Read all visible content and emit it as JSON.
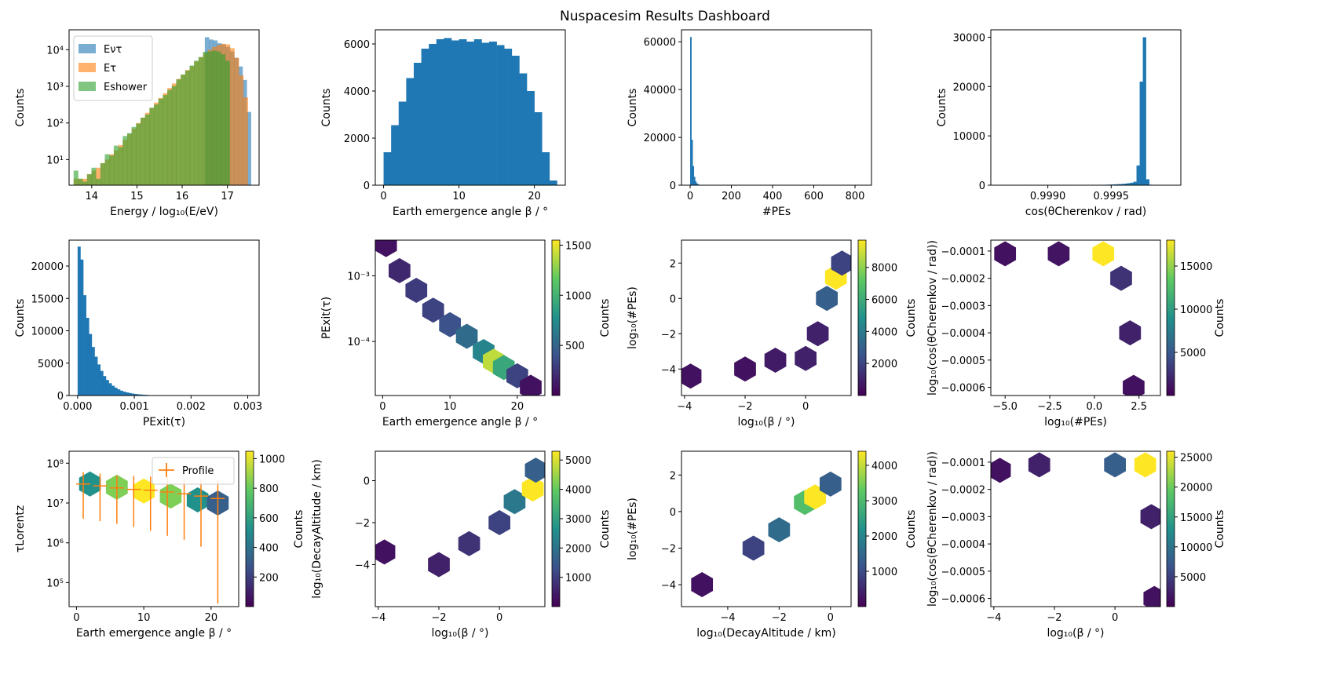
{
  "title": "Nuspacesim Results Dashboard",
  "chart_data": [
    {
      "id": "energy",
      "type": "histogram",
      "yscale": "log",
      "xlabel": "Energy / log₁₀(E/eV)",
      "ylabel": "Counts",
      "xlim": [
        13.5,
        17.7
      ],
      "ylim": [
        2,
        35000
      ],
      "xticks": [
        "14",
        "15",
        "16",
        "17"
      ],
      "xtick_values": [
        14,
        15,
        16,
        17
      ],
      "yticks": [
        "10¹",
        "10²",
        "10³",
        "10⁴"
      ],
      "ytick_values": [
        10,
        100,
        1000,
        10000
      ],
      "legend": {
        "entries": [
          "Eντ",
          "Eτ",
          "Eshower"
        ],
        "loc": "upper left"
      },
      "series": [
        {
          "name": "Eντ",
          "color": "#1f77b4",
          "bins": [
            16.5,
            17.52
          ],
          "values": [
            22000,
            19000,
            18000,
            15000,
            14000,
            12000,
            9000,
            6000,
            3500,
            1500,
            200
          ]
        },
        {
          "name": "Eτ",
          "color": "#ff7f0e",
          "bins": [
            13.6,
            17.45
          ],
          "values": [
            3,
            3,
            3,
            4,
            5,
            6,
            8,
            10,
            14,
            18,
            25,
            35,
            50,
            70,
            100,
            140,
            190,
            260,
            360,
            480,
            650,
            900,
            1200,
            1600,
            2100,
            2800,
            3600,
            4800,
            6300,
            8000,
            10000,
            12000,
            13500,
            14500,
            14000,
            11000,
            6000,
            2000,
            500
          ]
        },
        {
          "name": "Eshower",
          "color": "#2ca02c",
          "bins": [
            13.6,
            17.05
          ],
          "values": [
            5,
            3,
            2.5,
            4,
            6,
            3,
            8,
            14,
            13,
            24,
            22,
            44,
            53,
            78,
            96,
            140,
            170,
            260,
            320,
            460,
            580,
            800,
            1030,
            1550,
            2100,
            2700,
            3700,
            5000,
            6300,
            8800,
            9000,
            9500,
            9000,
            7500,
            5000
          ]
        }
      ]
    },
    {
      "id": "beta",
      "type": "histogram",
      "yscale": "linear",
      "xlabel": "Earth emergence angle β / °",
      "ylabel": "Counts",
      "xlim": [
        -1.1,
        24.1
      ],
      "ylim": [
        0,
        6600
      ],
      "xticks": [
        "0",
        "10",
        "20"
      ],
      "xtick_values": [
        0,
        10,
        20
      ],
      "yticks": [
        "0",
        "2000",
        "4000",
        "6000"
      ],
      "ytick_values": [
        0,
        2000,
        4000,
        6000
      ],
      "series": [
        {
          "name": "β",
          "color": "#1f77b4",
          "bins": [
            0,
            23
          ],
          "values": [
            1400,
            2550,
            3550,
            4550,
            5200,
            5800,
            6000,
            6200,
            6250,
            6150,
            6200,
            6100,
            6200,
            6050,
            6100,
            5950,
            5800,
            5500,
            4750,
            4000,
            3100,
            1400,
            200
          ]
        }
      ]
    },
    {
      "id": "npe",
      "type": "histogram",
      "yscale": "linear",
      "xlabel": "#PEs",
      "ylabel": "Counts",
      "xlim": [
        -42,
        880
      ],
      "ylim": [
        0,
        65000
      ],
      "xticks": [
        "0",
        "200",
        "400",
        "600",
        "800"
      ],
      "xtick_values": [
        0,
        200,
        400,
        600,
        800
      ],
      "yticks": [
        "0",
        "20000",
        "40000",
        "60000"
      ],
      "ytick_values": [
        0,
        20000,
        40000,
        60000
      ],
      "series": [
        {
          "name": "#PEs",
          "color": "#1f77b4",
          "bins": [
            0,
            42
          ],
          "values": [
            62000,
            19000,
            8000,
            3500,
            1600,
            800,
            400
          ]
        }
      ]
    },
    {
      "id": "cosc",
      "type": "histogram",
      "yscale": "linear",
      "xlabel": "cos(θCherenkov / rad)",
      "ylabel": "Counts",
      "xlim": [
        0.99855,
        1.00005
      ],
      "ylim": [
        0,
        31500
      ],
      "xticks": [
        "0.9990",
        "0.9995"
      ],
      "xtick_values": [
        0.999,
        0.9995
      ],
      "yticks": [
        "0",
        "10000",
        "20000",
        "30000"
      ],
      "ytick_values": [
        0,
        10000,
        20000,
        30000
      ],
      "series": [
        {
          "name": "cos θ",
          "color": "#1f77b4",
          "bins": [
            0.99945,
            0.99985
          ],
          "values": [
            100,
            120,
            150,
            180,
            220,
            260,
            320,
            400,
            500,
            700,
            4000,
            21000,
            30000,
            1200,
            100,
            20
          ]
        }
      ]
    },
    {
      "id": "pexit",
      "type": "histogram",
      "yscale": "linear",
      "xlabel": "PExit(τ)",
      "ylabel": "Counts",
      "xlim": [
        -0.00015,
        0.0032
      ],
      "ylim": [
        0,
        24000
      ],
      "xticks": [
        "0.000",
        "0.001",
        "0.002",
        "0.003"
      ],
      "xtick_values": [
        0,
        0.001,
        0.002,
        0.003
      ],
      "yticks": [
        "0",
        "5000",
        "10000",
        "15000",
        "20000"
      ],
      "ytick_values": [
        0,
        5000,
        10000,
        15000,
        20000
      ],
      "series": [
        {
          "name": "PExit",
          "color": "#1f77b4",
          "bins": [
            0,
            0.00125
          ],
          "values": [
            23000,
            21000,
            15500,
            12000,
            9500,
            7500,
            6000,
            4800,
            3800,
            3000,
            2400,
            1900,
            1500,
            1200,
            950,
            750,
            600,
            480,
            380,
            300,
            240,
            190,
            150,
            120,
            95
          ]
        }
      ]
    },
    {
      "id": "beta_pexit",
      "type": "hexbin",
      "yscale": "log",
      "xlabel": "Earth emergence angle β / °",
      "ylabel": "PExit(τ)",
      "xlim": [
        -1.1,
        24.1
      ],
      "ylim": [
        1.5e-05,
        0.0035
      ],
      "xticks": [
        "0",
        "10",
        "20"
      ],
      "xtick_values": [
        0,
        10,
        20
      ],
      "yticks": [
        "10⁻³",
        "10⁻⁴"
      ],
      "ytick_values": [
        0.001,
        0.0001
      ],
      "colorbar": {
        "label": "Counts",
        "ticks": [
          "500",
          "1000",
          "1500"
        ],
        "tick_values": [
          500,
          1000,
          1500
        ],
        "max": 1550
      },
      "points": [
        [
          0.5,
          0.003,
          0.05
        ],
        [
          2.5,
          0.0012,
          0.12
        ],
        [
          5,
          0.0006,
          0.18
        ],
        [
          7.5,
          0.0003,
          0.2
        ],
        [
          10,
          0.00018,
          0.25
        ],
        [
          12.5,
          0.00012,
          0.35
        ],
        [
          15,
          7e-05,
          0.45
        ],
        [
          16.5,
          5e-05,
          0.9
        ],
        [
          18,
          4e-05,
          0.6
        ],
        [
          20,
          3e-05,
          0.2
        ],
        [
          22,
          2e-05,
          0.05
        ]
      ]
    },
    {
      "id": "beta_npe",
      "type": "hexbin",
      "yscale": "linear",
      "xlabel": "log₁₀(β / °)",
      "ylabel": "log₁₀(#PEs)",
      "xlim": [
        -4.1,
        1.5
      ],
      "ylim": [
        -5.5,
        3.3
      ],
      "xticks": [
        "−4",
        "−2",
        "0"
      ],
      "xtick_values": [
        -4,
        -2,
        0
      ],
      "yticks": [
        "2",
        "0",
        "−2",
        "−4"
      ],
      "ytick_values": [
        2,
        0,
        -2,
        -4
      ],
      "colorbar": {
        "label": "Counts",
        "ticks": [
          "2000",
          "4000",
          "6000",
          "8000"
        ],
        "tick_values": [
          2000,
          4000,
          6000,
          8000
        ],
        "max": 9700
      },
      "points": [
        [
          -3.8,
          -4.4,
          0.05
        ],
        [
          -2,
          -4,
          0.05
        ],
        [
          -1,
          -3.5,
          0.08
        ],
        [
          0,
          -3.4,
          0.1
        ],
        [
          0.4,
          -2,
          0.1
        ],
        [
          0.7,
          0,
          0.3
        ],
        [
          1,
          1.2,
          1.0
        ],
        [
          1.2,
          2,
          0.2
        ]
      ]
    },
    {
      "id": "npe_cosc",
      "type": "hexbin",
      "yscale": "linear",
      "xlabel": "log₁₀(#PEs)",
      "ylabel": "log₁₀(cos(θCherenkov / rad))",
      "xlim": [
        -5.8,
        3.7
      ],
      "ylim": [
        -0.00063,
        -6e-05
      ],
      "xticks": [
        "−5.0",
        "−2.5",
        "0.0",
        "2.5"
      ],
      "xtick_values": [
        -5,
        -2.5,
        0,
        2.5
      ],
      "yticks": [
        "−0.0001",
        "−0.0002",
        "−0.0003",
        "−0.0004",
        "−0.0005",
        "−0.0006"
      ],
      "ytick_values": [
        -0.0001,
        -0.0002,
        -0.0003,
        -0.0004,
        -0.0005,
        -0.0006
      ],
      "colorbar": {
        "label": "Counts",
        "ticks": [
          "5000",
          "10000",
          "15000"
        ],
        "tick_values": [
          5000,
          10000,
          15000
        ],
        "max": 18000
      },
      "points": [
        [
          -5,
          -0.00011,
          0.05
        ],
        [
          -2,
          -0.00011,
          0.06
        ],
        [
          0.5,
          -0.00011,
          1.0
        ],
        [
          1.5,
          -0.0002,
          0.15
        ],
        [
          2,
          -0.0004,
          0.1
        ],
        [
          2.2,
          -0.0006,
          0.05
        ]
      ]
    },
    {
      "id": "beta_lorentz",
      "type": "hexbin",
      "yscale": "log",
      "xlabel": "Earth emergence angle β / °",
      "ylabel": "τLorentz",
      "xlim": [
        -1.1,
        24.1
      ],
      "ylim": [
        25000,
        200000000
      ],
      "xticks": [
        "0",
        "10",
        "20"
      ],
      "xtick_values": [
        0,
        10,
        20
      ],
      "yticks": [
        "10⁸",
        "10⁷",
        "10⁶",
        "10⁵"
      ],
      "ytick_values": [
        100000000,
        10000000,
        1000000,
        100000
      ],
      "legend": {
        "entries": [
          "Profile"
        ],
        "loc": "upper right"
      },
      "colorbar": {
        "label": "Counts",
        "ticks": [
          "200",
          "400",
          "600",
          "800",
          "1000"
        ],
        "tick_values": [
          200,
          400,
          600,
          800,
          1000
        ],
        "max": 1050
      },
      "points": [
        [
          2,
          30000000,
          0.5
        ],
        [
          6,
          25000000,
          0.8
        ],
        [
          10,
          20000000,
          1.0
        ],
        [
          14,
          15000000,
          0.8
        ],
        [
          18,
          12000000,
          0.5
        ],
        [
          21,
          10000000,
          0.3
        ]
      ],
      "profile": {
        "name": "Profile",
        "color": "#ff7f0e",
        "x": [
          1,
          3.5,
          6,
          8.5,
          11,
          13.5,
          16,
          18.5,
          21
        ],
        "y": [
          30000000,
          27000000,
          24000000,
          22000000,
          21000000,
          19000000,
          17000000,
          15000000,
          13000000
        ],
        "ylo": [
          4000000,
          3500000,
          3000000,
          2500000,
          2000000,
          1500000,
          1200000,
          800000,
          30000
        ],
        "yhi": [
          60000000,
          55000000,
          50000000,
          48000000,
          46000000,
          44000000,
          42000000,
          40000000,
          38000000
        ]
      }
    },
    {
      "id": "beta_decay",
      "type": "hexbin",
      "yscale": "linear",
      "xlabel": "log₁₀(β / °)",
      "ylabel": "log₁₀(DecayAltitude / km)",
      "xlim": [
        -4.1,
        1.5
      ],
      "ylim": [
        -6,
        1.4
      ],
      "xticks": [
        "−4",
        "−2",
        "0"
      ],
      "xtick_values": [
        -4,
        -2,
        0
      ],
      "yticks": [
        "0",
        "−2",
        "−4"
      ],
      "ytick_values": [
        0,
        -2,
        -4
      ],
      "colorbar": {
        "label": "Counts",
        "ticks": [
          "1000",
          "2000",
          "3000",
          "4000",
          "5000"
        ],
        "tick_values": [
          1000,
          2000,
          3000,
          4000,
          5000
        ],
        "max": 5300
      },
      "points": [
        [
          -3.8,
          -3.4,
          0.05
        ],
        [
          -2,
          -4,
          0.1
        ],
        [
          -1,
          -3,
          0.15
        ],
        [
          0,
          -2,
          0.2
        ],
        [
          0.5,
          -1,
          0.4
        ],
        [
          1.1,
          -0.4,
          1.0
        ],
        [
          1.2,
          0.5,
          0.3
        ]
      ]
    },
    {
      "id": "decay_npe",
      "type": "hexbin",
      "yscale": "linear",
      "xlabel": "log₁₀(DecayAltitude / km)",
      "ylabel": "log₁₀(#PEs)",
      "xlim": [
        -5.8,
        0.8
      ],
      "ylim": [
        -5.2,
        3.3
      ],
      "xticks": [
        "−4",
        "−2",
        "0"
      ],
      "xtick_values": [
        -4,
        -2,
        0
      ],
      "yticks": [
        "2",
        "0",
        "−2",
        "−4"
      ],
      "ytick_values": [
        2,
        0,
        -2,
        -4
      ],
      "colorbar": {
        "label": "Counts",
        "ticks": [
          "1000",
          "2000",
          "3000",
          "4000"
        ],
        "tick_values": [
          1000,
          2000,
          3000,
          4000
        ],
        "max": 4400
      },
      "points": [
        [
          -5,
          -4,
          0.05
        ],
        [
          -3,
          -2,
          0.2
        ],
        [
          -2,
          -1,
          0.35
        ],
        [
          -1,
          0.5,
          0.7
        ],
        [
          -0.6,
          0.8,
          1.0
        ],
        [
          0,
          1.5,
          0.3
        ]
      ]
    },
    {
      "id": "beta_cosc",
      "type": "hexbin",
      "yscale": "linear",
      "xlabel": "log₁₀(β / °)",
      "ylabel": "log₁₀(cos(θCherenkov / rad))",
      "xlim": [
        -4.1,
        1.5
      ],
      "ylim": [
        -0.00063,
        -6e-05
      ],
      "xticks": [
        "−4",
        "−2",
        "0"
      ],
      "xtick_values": [
        -4,
        -2,
        0
      ],
      "yticks": [
        "−0.0001",
        "−0.0002",
        "−0.0003",
        "−0.0004",
        "−0.0005",
        "−0.0006"
      ],
      "ytick_values": [
        -0.0001,
        -0.0002,
        -0.0003,
        -0.0004,
        -0.0005,
        -0.0006
      ],
      "colorbar": {
        "label": "Counts",
        "ticks": [
          "5000",
          "10000",
          "15000",
          "20000",
          "25000"
        ],
        "tick_values": [
          5000,
          10000,
          15000,
          20000,
          25000
        ],
        "max": 26000
      },
      "points": [
        [
          -3.8,
          -0.00013,
          0.05
        ],
        [
          -2.5,
          -0.00011,
          0.1
        ],
        [
          0,
          -0.00011,
          0.3
        ],
        [
          1,
          -0.00011,
          1.0
        ],
        [
          1.2,
          -0.0003,
          0.1
        ],
        [
          1.3,
          -0.0006,
          0.05
        ]
      ]
    }
  ]
}
